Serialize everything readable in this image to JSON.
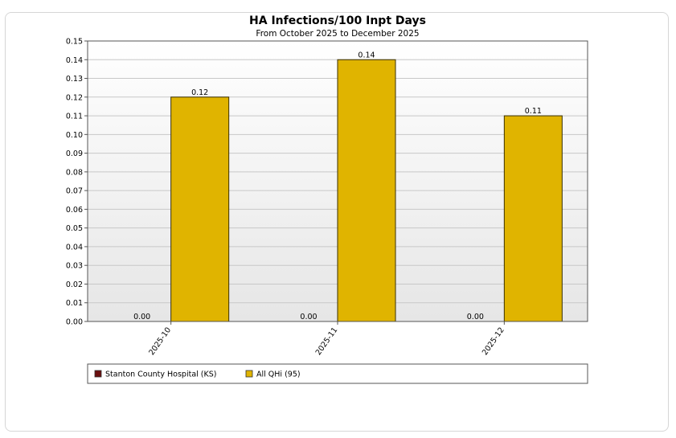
{
  "chart_data": {
    "type": "bar",
    "title": "HA Infections/100 Inpt Days",
    "subtitle": "From October 2025 to December 2025",
    "xlabel": "",
    "ylabel": "",
    "categories": [
      "2025-10",
      "2025-11",
      "2025-12"
    ],
    "series": [
      {
        "name": "Stanton County Hospital (KS)",
        "color": "#6b0f0f",
        "values": [
          0.0,
          0.0,
          0.0
        ],
        "labels": [
          "0.00",
          "0.00",
          "0.00"
        ]
      },
      {
        "name": "All QHi (95)",
        "color": "#e0b400",
        "values": [
          0.12,
          0.14,
          0.11
        ],
        "labels": [
          "0.12",
          "0.14",
          "0.11"
        ]
      }
    ],
    "ylim": [
      0,
      0.15
    ],
    "yticks": [
      "0.00",
      "0.01",
      "0.02",
      "0.03",
      "0.04",
      "0.05",
      "0.06",
      "0.07",
      "0.08",
      "0.09",
      "0.10",
      "0.11",
      "0.12",
      "0.13",
      "0.14",
      "0.15"
    ],
    "grid": true,
    "legend_position": "bottom"
  }
}
